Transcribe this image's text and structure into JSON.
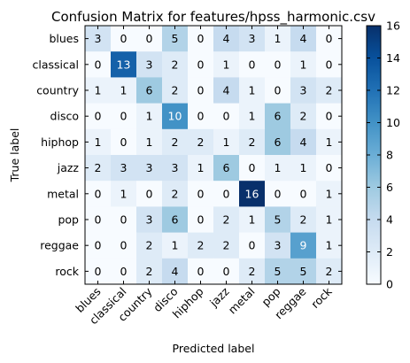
{
  "chart_data": {
    "type": "heatmap",
    "title": "Confusion Matrix for features/hpss_harmonic.csv",
    "xlabel": "Predicted label",
    "ylabel": "True label",
    "labels": [
      "blues",
      "classical",
      "country",
      "disco",
      "hiphop",
      "jazz",
      "metal",
      "pop",
      "reggae",
      "rock"
    ],
    "matrix": [
      [
        3,
        0,
        0,
        5,
        0,
        4,
        3,
        1,
        4,
        0
      ],
      [
        0,
        13,
        3,
        2,
        0,
        1,
        0,
        0,
        1,
        0
      ],
      [
        1,
        1,
        6,
        2,
        0,
        4,
        1,
        0,
        3,
        2
      ],
      [
        0,
        0,
        1,
        10,
        0,
        0,
        1,
        6,
        2,
        0
      ],
      [
        1,
        0,
        1,
        2,
        2,
        1,
        2,
        6,
        4,
        1
      ],
      [
        2,
        3,
        3,
        3,
        1,
        6,
        0,
        1,
        1,
        0
      ],
      [
        0,
        1,
        0,
        2,
        0,
        0,
        16,
        0,
        0,
        1
      ],
      [
        0,
        0,
        3,
        6,
        0,
        2,
        1,
        5,
        2,
        1
      ],
      [
        0,
        0,
        2,
        1,
        2,
        2,
        0,
        3,
        9,
        1
      ],
      [
        0,
        0,
        2,
        4,
        0,
        0,
        2,
        5,
        5,
        2
      ]
    ],
    "colorbar": {
      "min": 0,
      "max": 16,
      "ticks": [
        "0",
        "2",
        "4",
        "6",
        "8",
        "10",
        "12",
        "14",
        "16"
      ]
    },
    "colormap": "Blues",
    "legend": "none",
    "grid": false
  }
}
